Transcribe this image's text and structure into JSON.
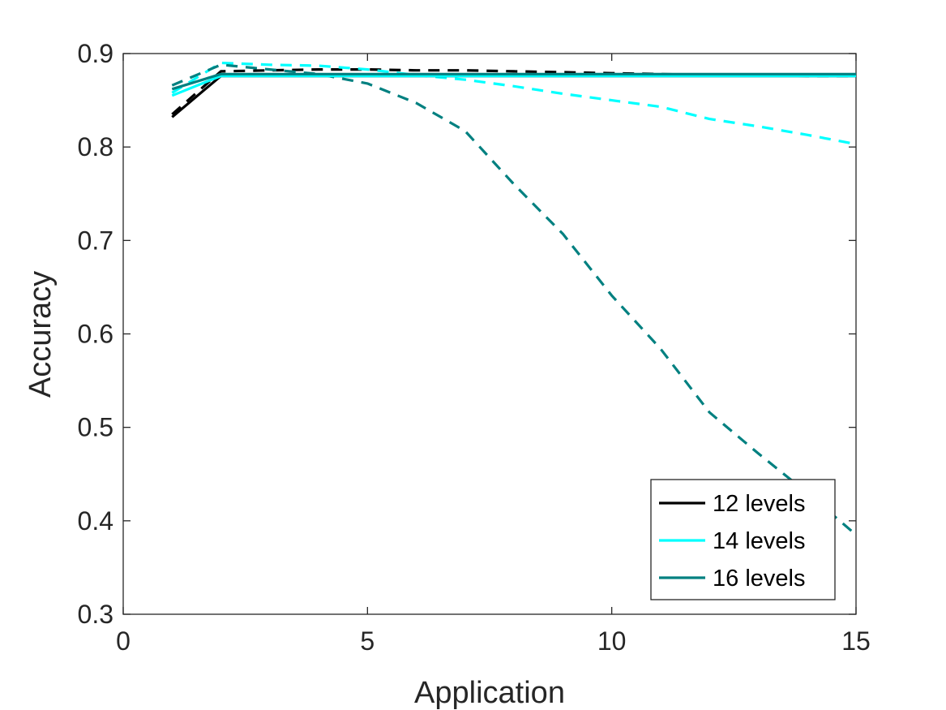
{
  "chart_data": {
    "type": "line",
    "xlabel": "Application",
    "ylabel": "Accuracy",
    "xlim": [
      0,
      15
    ],
    "ylim": [
      0.3,
      0.9
    ],
    "xticks": [
      0,
      5,
      10,
      15
    ],
    "yticks": [
      0.3,
      0.4,
      0.5,
      0.6,
      0.7,
      0.8,
      0.9
    ],
    "grid": false,
    "legend_position": "bottom-right",
    "x": [
      1,
      2,
      3,
      4,
      5,
      6,
      7,
      8,
      9,
      10,
      11,
      12,
      13,
      14,
      15
    ],
    "series": [
      {
        "name": "12 levels",
        "color": "#000000",
        "style": "solid",
        "in_legend": true,
        "values": [
          0.832,
          0.876,
          0.876,
          0.876,
          0.876,
          0.876,
          0.876,
          0.876,
          0.876,
          0.876,
          0.876,
          0.876,
          0.876,
          0.876,
          0.876
        ]
      },
      {
        "name": "14 levels",
        "color": "#00ffff",
        "style": "solid",
        "in_legend": true,
        "values": [
          0.855,
          0.876,
          0.876,
          0.876,
          0.876,
          0.876,
          0.876,
          0.876,
          0.876,
          0.876,
          0.876,
          0.876,
          0.876,
          0.876,
          0.876
        ]
      },
      {
        "name": "16 levels",
        "color": "#008080",
        "style": "solid",
        "in_legend": true,
        "values": [
          0.862,
          0.878,
          0.878,
          0.878,
          0.878,
          0.878,
          0.878,
          0.878,
          0.878,
          0.878,
          0.878,
          0.878,
          0.878,
          0.878,
          0.878
        ]
      },
      {
        "color": "#000000",
        "style": "dashed",
        "in_legend": false,
        "values": [
          0.835,
          0.881,
          0.882,
          0.883,
          0.883,
          0.882,
          0.882,
          0.881,
          0.88,
          0.879,
          0.878,
          0.877,
          0.877,
          0.876,
          0.876
        ]
      },
      {
        "color": "#00ffff",
        "style": "dashed",
        "in_legend": false,
        "values": [
          0.858,
          0.89,
          0.888,
          0.887,
          0.883,
          0.877,
          0.872,
          0.865,
          0.857,
          0.85,
          0.843,
          0.83,
          0.822,
          0.813,
          0.803
        ]
      },
      {
        "color": "#008080",
        "style": "dashed",
        "in_legend": false,
        "values": [
          0.866,
          0.888,
          0.883,
          0.878,
          0.868,
          0.847,
          0.817,
          0.76,
          0.707,
          0.641,
          0.584,
          0.516,
          0.472,
          0.43,
          0.385
        ]
      }
    ]
  }
}
